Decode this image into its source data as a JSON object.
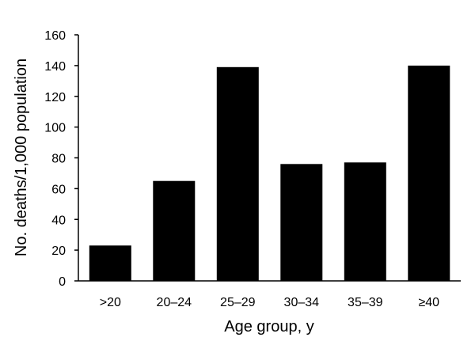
{
  "chart_data": {
    "type": "bar",
    "title": "",
    "xlabel": "Age group, y",
    "ylabel": "No. deaths/1,000 population",
    "categories": [
      ">20",
      "20–24",
      "25–29",
      "30–34",
      "35–39",
      "≥40"
    ],
    "values": [
      23,
      65,
      139,
      76,
      77,
      140
    ],
    "ylim": [
      0,
      160
    ],
    "yticks": [
      "0",
      "20",
      "40",
      "60",
      "80",
      "100",
      "120",
      "140",
      "160"
    ],
    "bar_color": "#000000",
    "grid": false,
    "legend": "none"
  }
}
